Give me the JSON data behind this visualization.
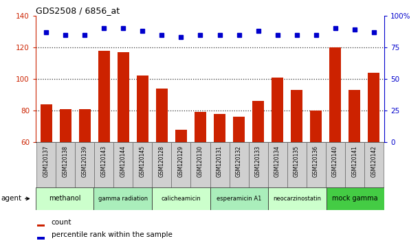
{
  "title": "GDS2508 / 6856_at",
  "samples": [
    "GSM120137",
    "GSM120138",
    "GSM120139",
    "GSM120143",
    "GSM120144",
    "GSM120145",
    "GSM120128",
    "GSM120129",
    "GSM120130",
    "GSM120131",
    "GSM120132",
    "GSM120133",
    "GSM120134",
    "GSM120135",
    "GSM120136",
    "GSM120140",
    "GSM120141",
    "GSM120142"
  ],
  "counts": [
    84,
    81,
    81,
    118,
    117,
    102,
    94,
    68,
    79,
    78,
    76,
    86,
    101,
    93,
    80,
    120,
    93,
    104
  ],
  "percentiles": [
    87,
    85,
    85,
    90,
    90,
    88,
    85,
    83,
    85,
    85,
    85,
    88,
    85,
    85,
    85,
    90,
    89,
    87
  ],
  "bar_color": "#cc2200",
  "dot_color": "#0000cc",
  "ylim_left": [
    60,
    140
  ],
  "ylim_right": [
    0,
    100
  ],
  "yticks_left": [
    60,
    80,
    100,
    120,
    140
  ],
  "yticks_right": [
    0,
    25,
    50,
    75,
    100
  ],
  "ytick_labels_right": [
    "0",
    "25",
    "50",
    "75",
    "100%"
  ],
  "groups": [
    {
      "label": "methanol",
      "start": 0,
      "end": 3,
      "color": "#ccffcc"
    },
    {
      "label": "gamma radiation",
      "start": 3,
      "end": 6,
      "color": "#aaeebb"
    },
    {
      "label": "calicheamicin",
      "start": 6,
      "end": 9,
      "color": "#ccffcc"
    },
    {
      "label": "esperamicin A1",
      "start": 9,
      "end": 12,
      "color": "#aaeebb"
    },
    {
      "label": "neocarzinostatin",
      "start": 12,
      "end": 15,
      "color": "#ccffcc"
    },
    {
      "label": "mock gamma",
      "start": 15,
      "end": 18,
      "color": "#44cc44"
    }
  ],
  "agent_label": "agent",
  "legend_count_label": "count",
  "legend_percentile_label": "percentile rank within the sample",
  "tick_area_color": "#d0d0d0",
  "dotted_line_color": "#333333"
}
